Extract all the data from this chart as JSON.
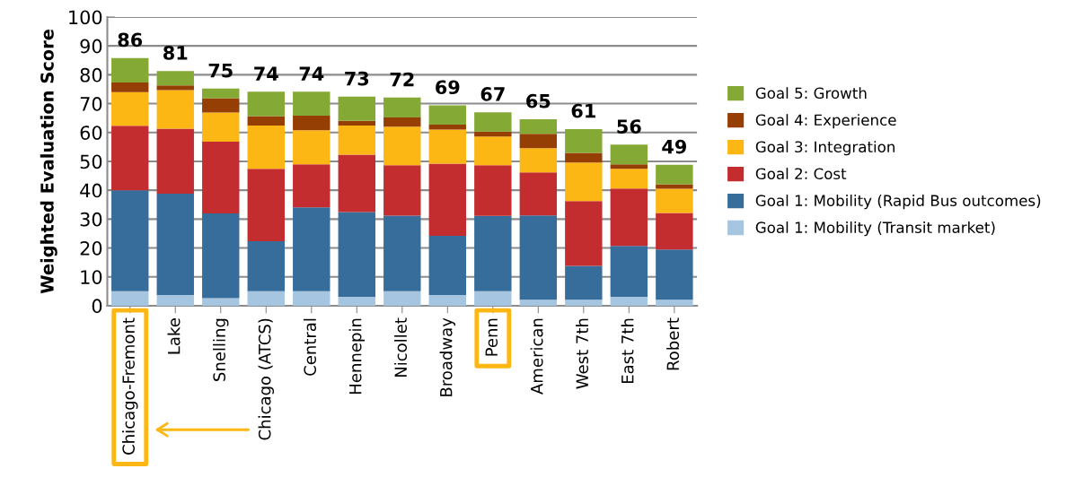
{
  "chart_data": {
    "type": "bar",
    "stacked": true,
    "ylabel": "Weighted Evaluation Score",
    "categories": [
      "Chicago-Fremont",
      "Lake",
      "Snelling",
      "Chicago (ATCS)",
      "Central",
      "Hennepin",
      "Nicollet",
      "Broadway",
      "Penn",
      "American",
      "West 7th",
      "East 7th",
      "Robert"
    ],
    "series": [
      {
        "name": "Goal 1: Mobility (Transit market)",
        "color": "#a6c5e0",
        "values": [
          5,
          3.7,
          2.6,
          5,
          5,
          3.1,
          5,
          3.7,
          5,
          2.1,
          2.1,
          3.1,
          2.1
        ]
      },
      {
        "name": "Goal 1: Mobility (Rapid Bus outcomes)",
        "color": "#376d9b",
        "values": [
          35,
          35.1,
          29.4,
          17.3,
          29.1,
          29.3,
          26.2,
          20.5,
          26.1,
          29.2,
          11.7,
          17.6,
          17.4
        ]
      },
      {
        "name": "Goal 2: Cost",
        "color": "#c32d30",
        "values": [
          22.3,
          22.5,
          24.8,
          25.1,
          14.9,
          19.9,
          17.5,
          25,
          17.6,
          14.9,
          22.4,
          19.9,
          12.6
        ]
      },
      {
        "name": "Goal 3: Integration",
        "color": "#fdb714",
        "values": [
          11.7,
          13.4,
          10.1,
          15,
          11.8,
          10.1,
          13.3,
          11.8,
          9.9,
          8.4,
          13.4,
          6.8,
          8.4
        ]
      },
      {
        "name": "Goal 4: Experience",
        "color": "#963f05",
        "values": [
          3.3,
          1.6,
          5,
          3.3,
          5,
          1.6,
          3.2,
          1.7,
          1.7,
          4.9,
          3.3,
          1.6,
          1.6
        ]
      },
      {
        "name": "Goal 5: Growth",
        "color": "#85a935",
        "values": [
          8.5,
          5,
          3.3,
          8.4,
          8.3,
          8.4,
          6.9,
          6.7,
          6.7,
          5.1,
          8.3,
          6.8,
          6.7
        ]
      }
    ],
    "totals": [
      "86",
      "81",
      "75",
      "74",
      "74",
      "73",
      "72",
      "69",
      "67",
      "65",
      "61",
      "56",
      "49"
    ],
    "ylim": [
      0,
      100
    ],
    "yticks": [
      0,
      10,
      20,
      30,
      40,
      50,
      60,
      70,
      80,
      90,
      100
    ],
    "grid": "y",
    "legend": "right"
  }
}
